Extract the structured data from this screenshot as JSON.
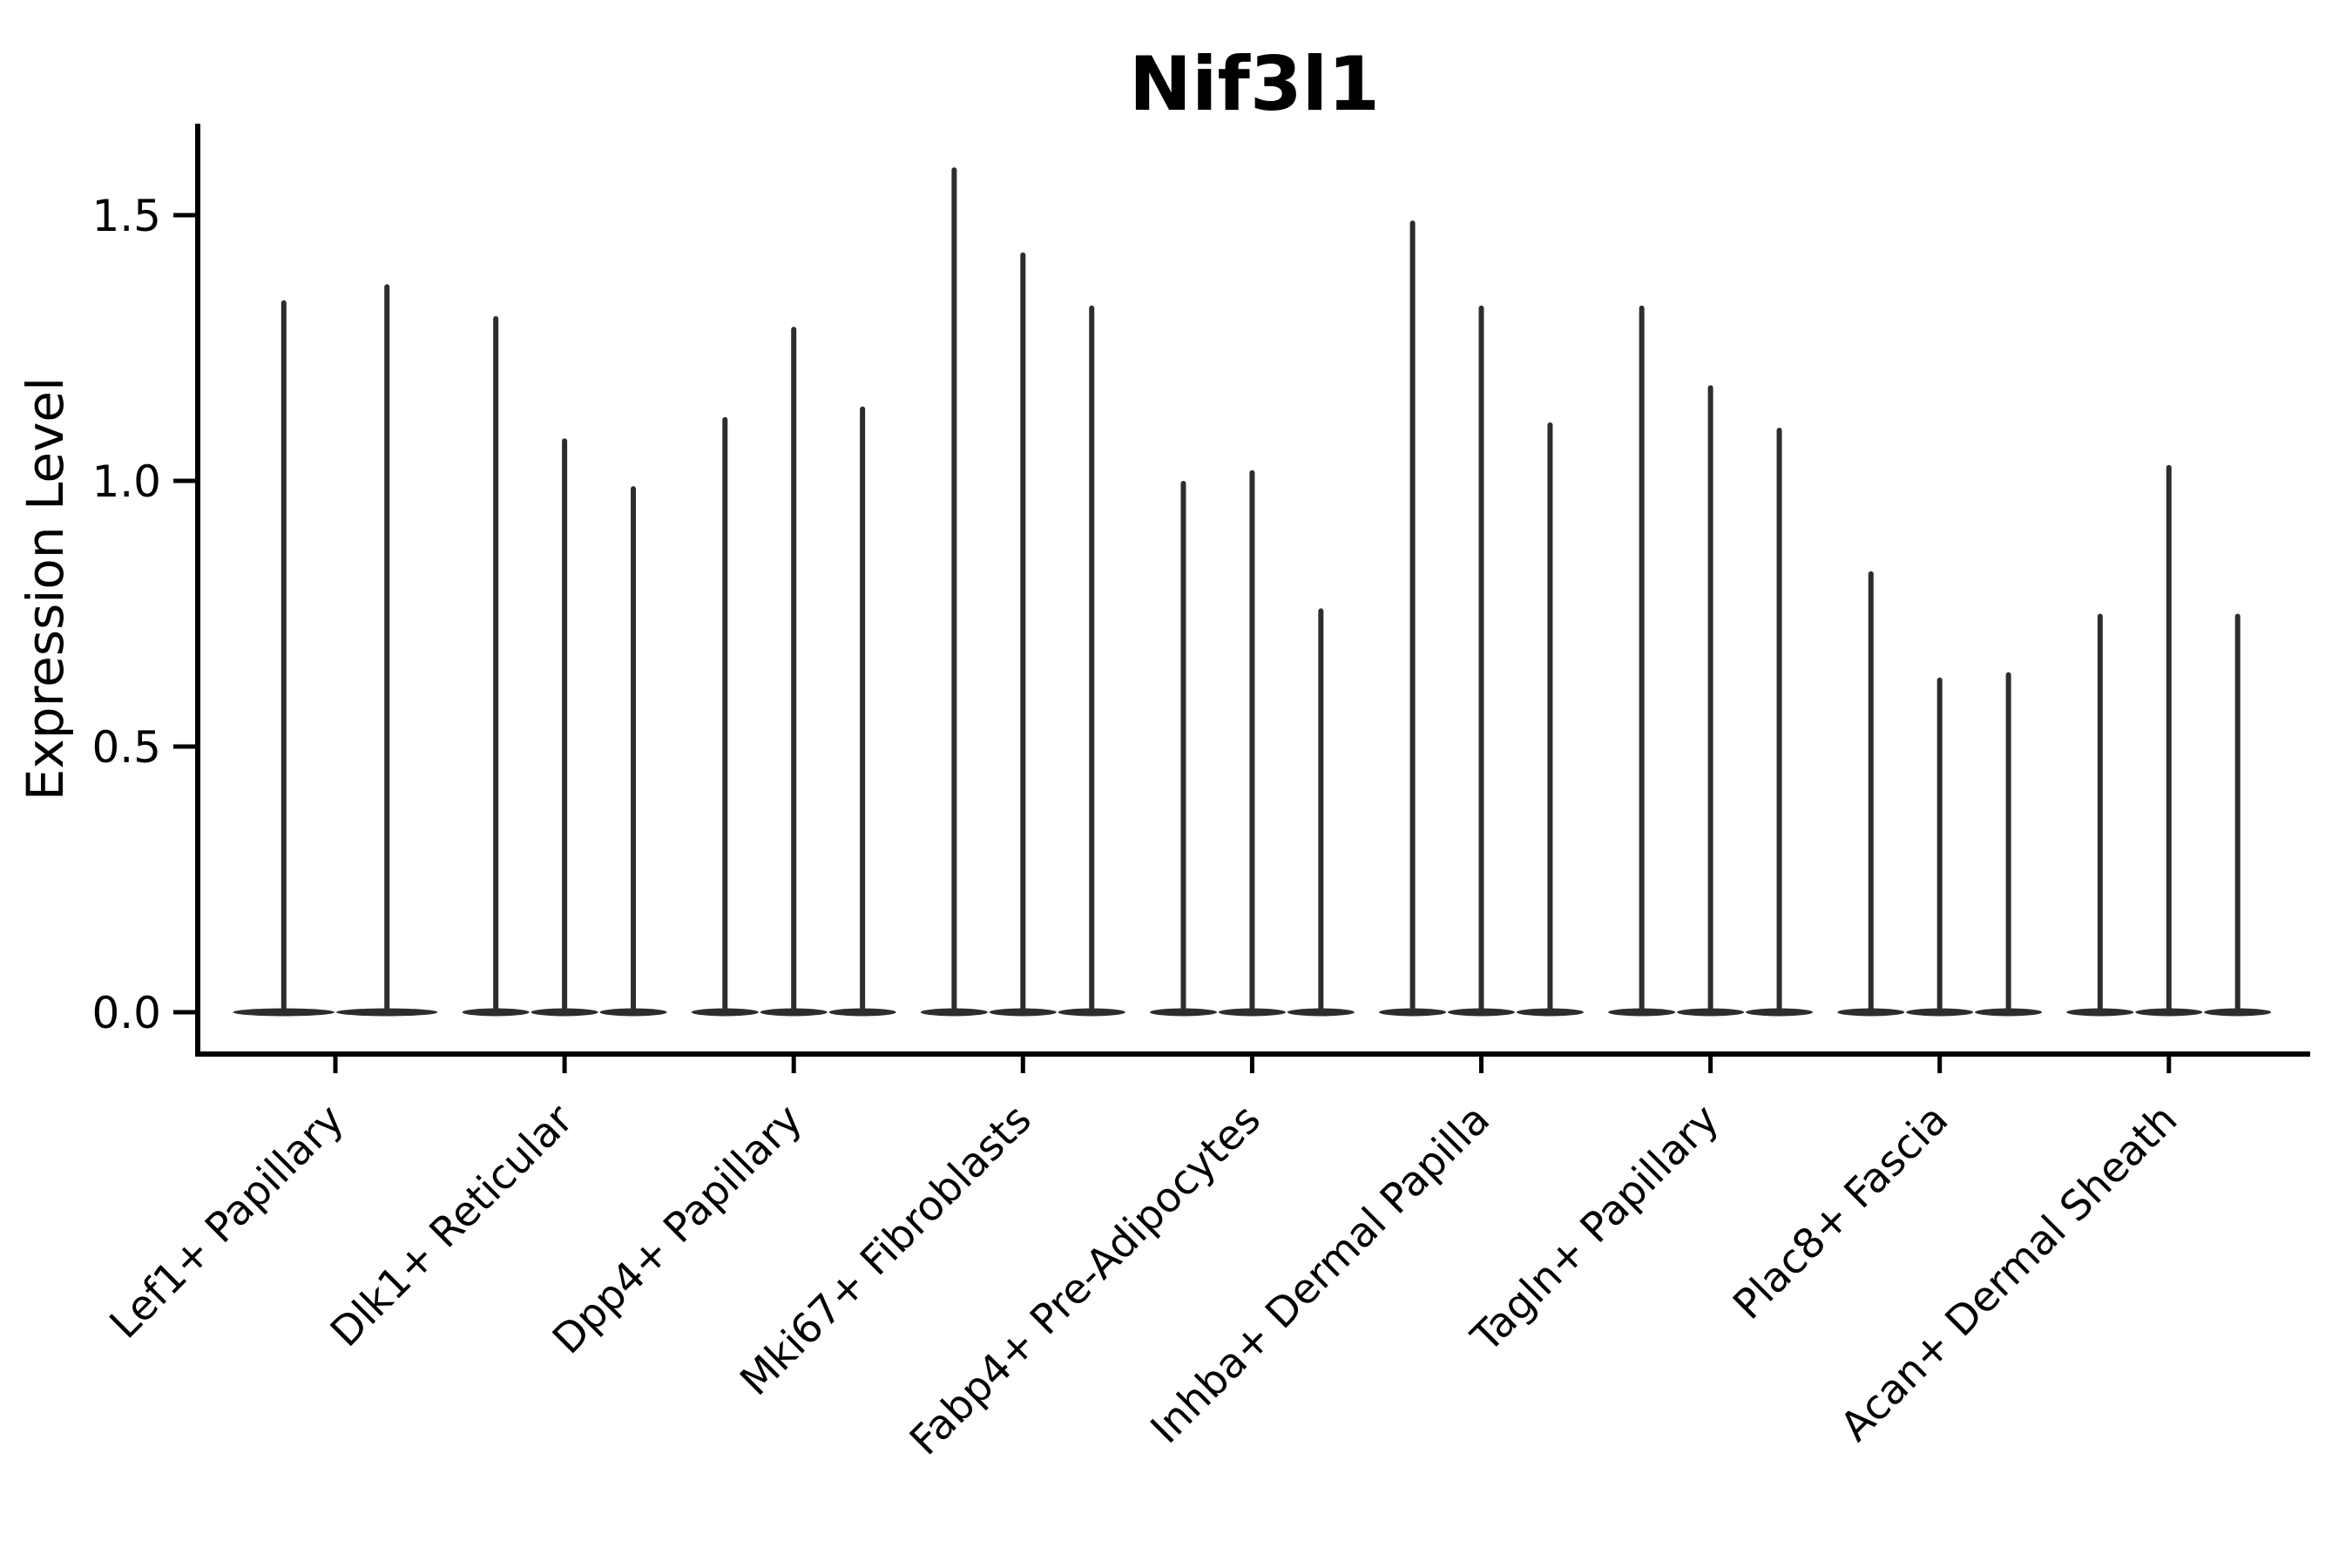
{
  "title": "Nif3l1",
  "y_axis": {
    "label": "Expression Level",
    "tick_labels": [
      "0.0",
      "0.5",
      "1.0",
      "1.5"
    ]
  },
  "chart_data": {
    "type": "violin",
    "title": "Nif3l1",
    "xlabel": "",
    "ylabel": "Expression Level",
    "ylim": [
      -0.08,
      1.67
    ],
    "yticks": [
      0.0,
      0.5,
      1.0,
      1.5
    ],
    "grid": false,
    "legend": false,
    "violin_color": "#2d2d2d",
    "axis_color": "#000000",
    "style_note": "Seurat-style violin plot; each violin is a near-zero-width spike rising from a flat density bulge at expression 0 up to the maximum expression value; groups of 2-3 violins per cell-type category.",
    "categories": [
      "Lef1+ Papillary",
      "Dlk1+ Reticular",
      "Dpp4+ Papillary",
      "Mki67+ Fibroblasts",
      "Fabp4+ Pre-Adipocytes",
      "Inhba+ Dermal Papilla",
      "Tagln+ Papillary",
      "Plac8+ Fascia",
      "Acan+ Dermal Sheath"
    ],
    "groups": [
      {
        "category": "Lef1+ Papillary",
        "violin_maxima": [
          1.34,
          1.37
        ]
      },
      {
        "category": "Dlk1+ Reticular",
        "violin_maxima": [
          1.31,
          1.08,
          0.99
        ]
      },
      {
        "category": "Dpp4+ Papillary",
        "violin_maxima": [
          1.12,
          1.29,
          1.14
        ]
      },
      {
        "category": "Mki67+ Fibroblasts",
        "violin_maxima": [
          1.59,
          1.43,
          1.33
        ]
      },
      {
        "category": "Fabp4+ Pre-Adipocytes",
        "violin_maxima": [
          1.0,
          1.02,
          0.76
        ]
      },
      {
        "category": "Inhba+ Dermal Papilla",
        "violin_maxima": [
          1.49,
          1.33,
          1.11
        ]
      },
      {
        "category": "Tagln+ Papillary",
        "violin_maxima": [
          1.33,
          1.18,
          1.1
        ]
      },
      {
        "category": "Plac8+ Fascia",
        "violin_maxima": [
          0.83,
          0.63,
          0.64
        ]
      },
      {
        "category": "Acan+ Dermal Sheath",
        "violin_maxima": [
          0.75,
          1.03,
          0.75
        ]
      }
    ]
  }
}
